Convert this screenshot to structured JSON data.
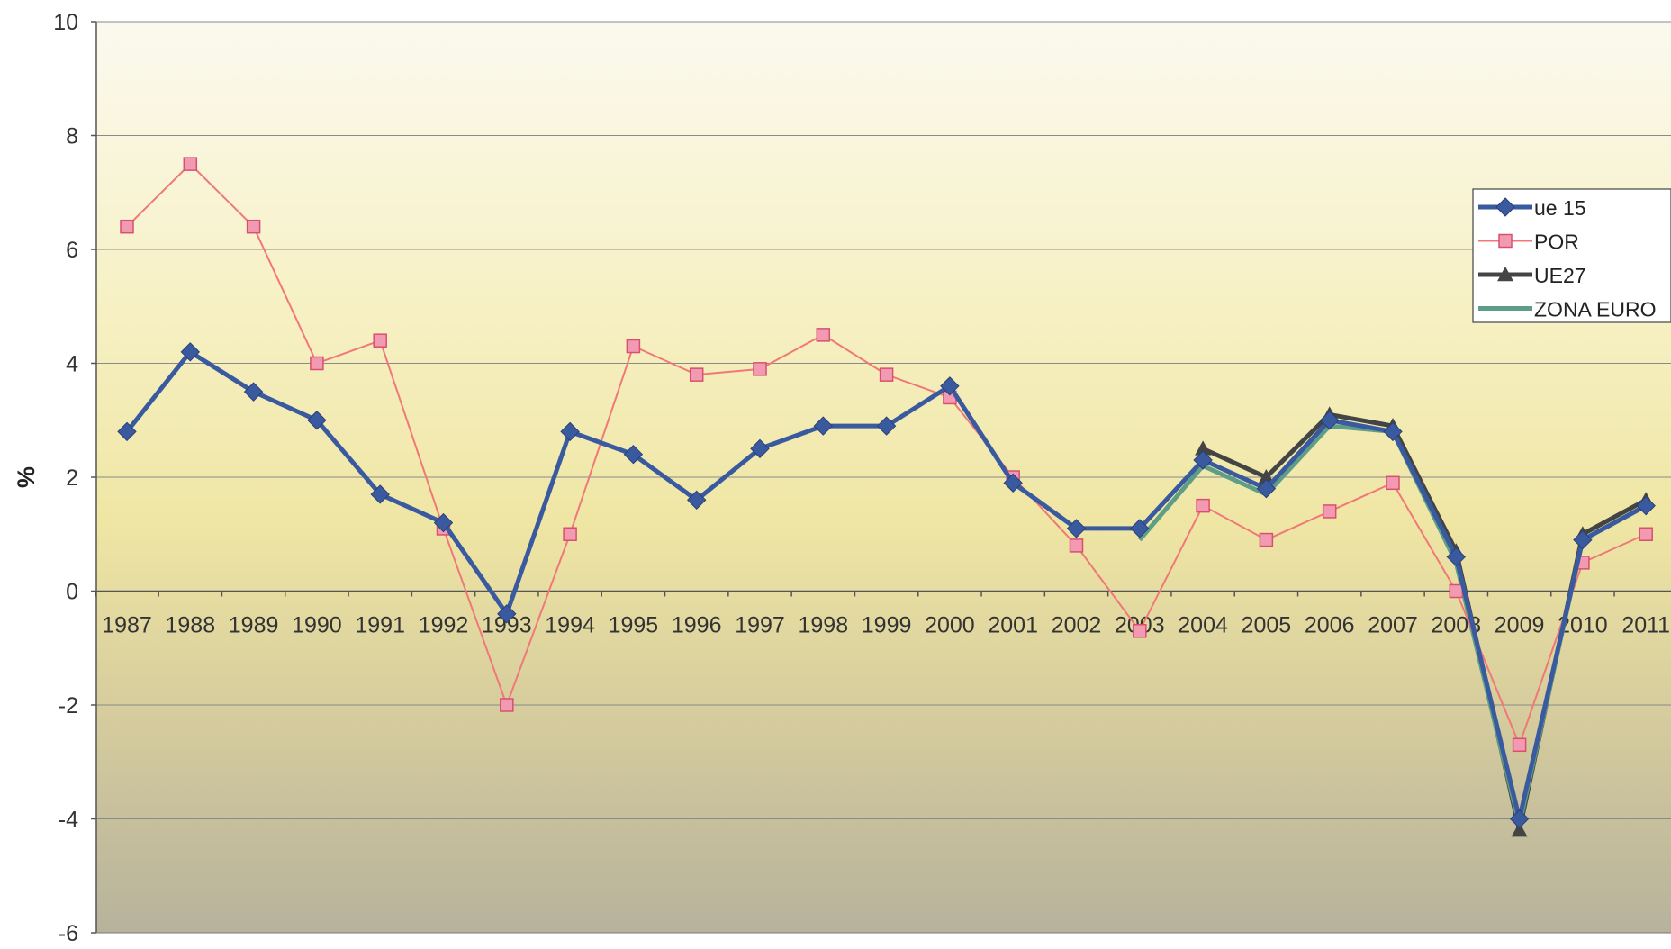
{
  "chart_data": {
    "type": "line",
    "title": "",
    "xlabel": "",
    "ylabel": "%",
    "ylim": [
      -6,
      10
    ],
    "yticks": [
      10,
      8,
      6,
      4,
      2,
      0,
      -2,
      -4,
      -6
    ],
    "categories": [
      "1987",
      "1988",
      "1989",
      "1990",
      "1991",
      "1992",
      "1993",
      "1994",
      "1995",
      "1996",
      "1997",
      "1998",
      "1999",
      "2000",
      "2001",
      "2002",
      "2003",
      "2004",
      "2005",
      "2006",
      "2007",
      "2008",
      "2009",
      "2010",
      "2011"
    ],
    "grid": true,
    "legend_position": "right",
    "series": [
      {
        "name": "ue 15",
        "color": "#3a5aa0",
        "marker": "diamond",
        "values": [
          2.8,
          4.2,
          3.5,
          3.0,
          1.7,
          1.2,
          -0.4,
          2.8,
          2.4,
          1.6,
          2.5,
          2.9,
          2.9,
          3.6,
          1.9,
          1.1,
          1.1,
          2.3,
          1.8,
          3.0,
          2.8,
          0.6,
          -4.0,
          0.9,
          1.5
        ]
      },
      {
        "name": "POR",
        "color": "#f07878",
        "marker": "square",
        "values": [
          6.4,
          7.5,
          6.4,
          4.0,
          4.4,
          1.1,
          -2.0,
          1.0,
          4.3,
          3.8,
          3.9,
          4.5,
          3.8,
          3.4,
          2.0,
          0.8,
          -0.7,
          1.5,
          0.9,
          1.4,
          1.9,
          0.0,
          -2.7,
          0.5,
          1.0
        ]
      },
      {
        "name": "UE27",
        "color": "#444444",
        "marker": "triangle",
        "values": [
          null,
          null,
          null,
          null,
          null,
          null,
          null,
          null,
          null,
          null,
          null,
          null,
          null,
          null,
          null,
          null,
          null,
          2.5,
          2.0,
          3.1,
          2.9,
          0.7,
          -4.2,
          1.0,
          1.6
        ]
      },
      {
        "name": "ZONA EURO",
        "color": "#5e9e86",
        "marker": "none",
        "values": [
          null,
          null,
          null,
          null,
          null,
          null,
          null,
          null,
          null,
          null,
          null,
          null,
          null,
          null,
          null,
          null,
          0.9,
          2.2,
          1.7,
          2.9,
          2.8,
          0.5,
          -4.1,
          0.9,
          1.5
        ]
      }
    ]
  }
}
